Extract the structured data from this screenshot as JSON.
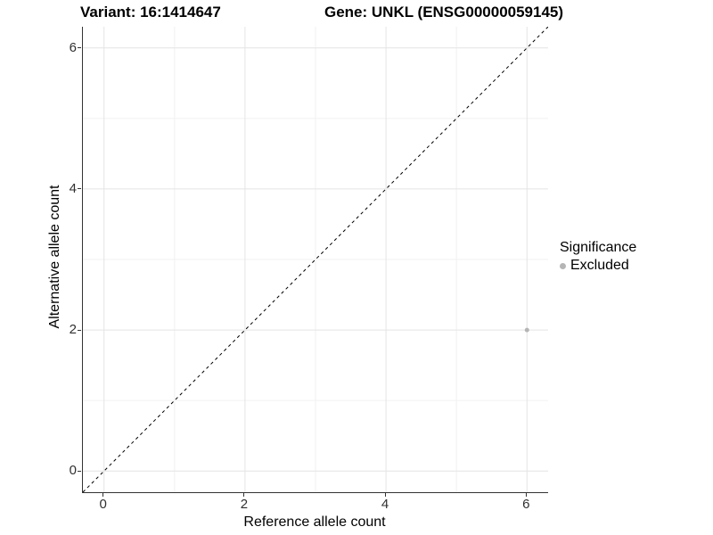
{
  "header": {
    "variant_title": "Variant: 16:1414647",
    "gene_title": "Gene: UNKL (ENSG00000059145)"
  },
  "chart_data": {
    "type": "scatter",
    "xlabel": "Reference allele count",
    "ylabel": "Alternative allele count",
    "xlim": [
      -0.3,
      6.3
    ],
    "ylim": [
      -0.3,
      6.3
    ],
    "x_ticks": [
      0,
      2,
      4,
      6
    ],
    "y_ticks": [
      0,
      2,
      4,
      6
    ],
    "x_minor_ticks": [
      1,
      3,
      5
    ],
    "y_minor_ticks": [
      1,
      3,
      5
    ],
    "grid": "on",
    "colors": {
      "major_grid": "#e4e4e4",
      "minor_grid": "#f1f1f1",
      "axis_line": "#333333",
      "identity_line": "#000000",
      "point": "#b5b5b5"
    },
    "identity_line": {
      "style": "dashed",
      "from": [
        -0.3,
        -0.3
      ],
      "to": [
        6.3,
        6.3
      ]
    },
    "series": [
      {
        "name": "Excluded",
        "color": "#b5b5b5",
        "points": [
          {
            "x": 6,
            "y": 2
          }
        ]
      }
    ],
    "legend": {
      "title": "Significance",
      "position": "right",
      "items": [
        {
          "label": "Excluded",
          "color": "#b5b5b5"
        }
      ]
    }
  }
}
